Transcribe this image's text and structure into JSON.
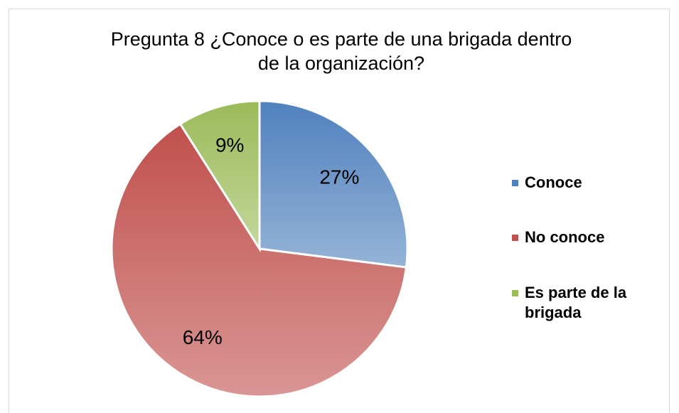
{
  "chart_data": {
    "type": "pie",
    "title": "Pregunta 8 ¿Conoce o es parte de una brigada dentro de la organización?",
    "categories": [
      "Conoce",
      "No conoce",
      "Es parte de la brigada"
    ],
    "values": [
      27,
      64,
      9
    ],
    "value_labels": [
      "27%",
      "64%",
      "9%"
    ],
    "colors": [
      "#4f81bd",
      "#c0504d",
      "#9bbb59"
    ],
    "legend": "right"
  }
}
